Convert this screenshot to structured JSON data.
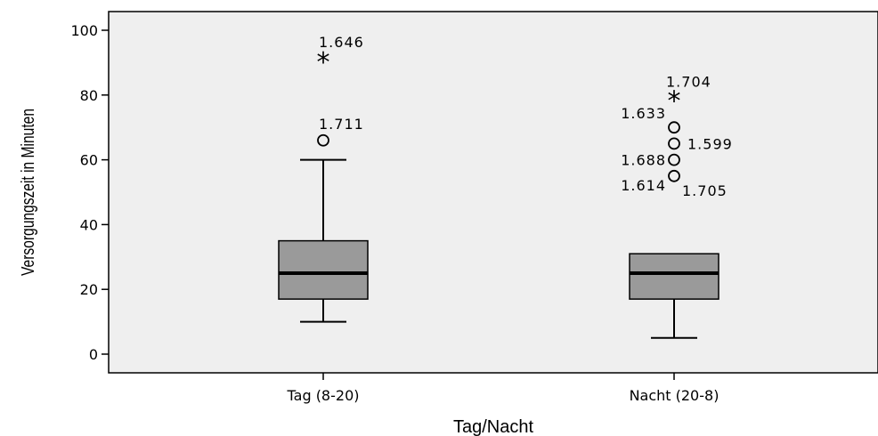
{
  "chart_data": {
    "type": "boxplot",
    "xlabel": "Tag/Nacht",
    "ylabel": "Versorgungszeit in Minuten",
    "ylim": [
      -6,
      105
    ],
    "yticks": [
      0,
      20,
      40,
      60,
      80,
      100
    ],
    "grid": false,
    "colors": {
      "plot_bg": "#efefef",
      "box_fill": "#9a9a9a",
      "line": "#000000"
    },
    "categories": [
      "Tag (8-20)",
      "Nacht (20-8)"
    ],
    "boxes": [
      {
        "category": "Tag (8-20)",
        "whisker_low": 10,
        "q1": 17,
        "median": 25,
        "q3": 35,
        "whisker_high": 60,
        "outliers": [
          {
            "value": 66,
            "marker": "circle",
            "label": "1.711"
          },
          {
            "value": 91,
            "marker": "star",
            "label": "1.646"
          }
        ]
      },
      {
        "category": "Nacht (20-8)",
        "whisker_low": 5,
        "q1": 17,
        "median": 25,
        "q3": 31,
        "whisker_high": 31,
        "outliers": [
          {
            "value": 55,
            "marker": "circle",
            "label": "1.614"
          },
          {
            "value": 55,
            "marker": "circle",
            "label": "1.705"
          },
          {
            "value": 60,
            "marker": "circle",
            "label": "1.688"
          },
          {
            "value": 65,
            "marker": "circle",
            "label": "1.599"
          },
          {
            "value": 70,
            "marker": "circle",
            "label": "1.633"
          },
          {
            "value": 79,
            "marker": "star",
            "label": "1.704"
          }
        ]
      }
    ]
  }
}
